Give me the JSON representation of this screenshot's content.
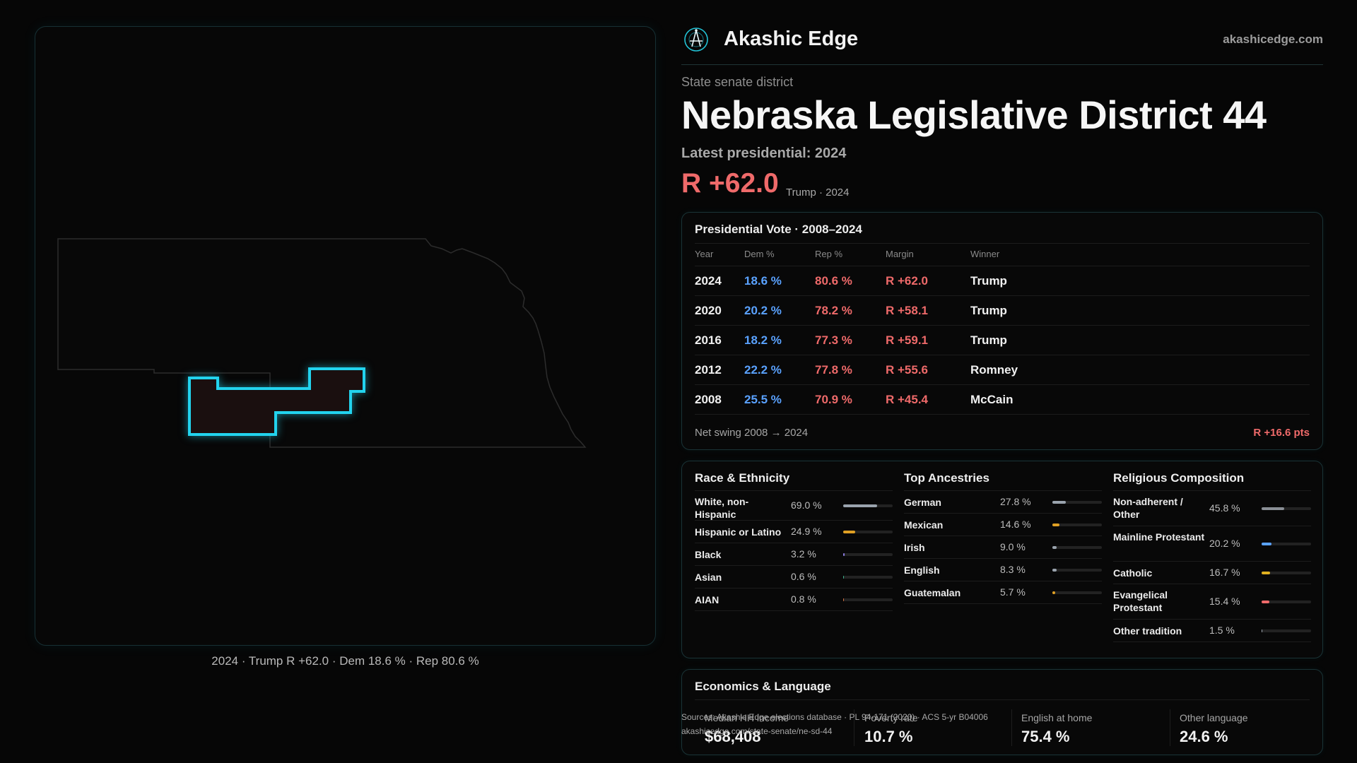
{
  "brand": {
    "name": "Akashic Edge",
    "url": "akashicedge.com",
    "logo": "akashic-compass-logo"
  },
  "header": {
    "kicker": "State senate district",
    "title": "Nebraska Legislative District 44",
    "latest": "Latest presidential: 2024",
    "margin": "R +62.0",
    "margin_sub": "Trump · 2024"
  },
  "map": {
    "caption": "2024 · Trump R +62.0 · Dem 18.6 % · Rep 80.6 %"
  },
  "presidential": {
    "title": "Presidential Vote · 2008–2024",
    "headers": [
      "Year",
      "Dem %",
      "Rep %",
      "Margin",
      "Winner"
    ],
    "rows": [
      {
        "year": "2024",
        "dem": "18.6 %",
        "rep": "80.6 %",
        "margin": "R +62.0",
        "winner": "Trump"
      },
      {
        "year": "2020",
        "dem": "20.2 %",
        "rep": "78.2 %",
        "margin": "R +58.1",
        "winner": "Trump"
      },
      {
        "year": "2016",
        "dem": "18.2 %",
        "rep": "77.3 %",
        "margin": "R +59.1",
        "winner": "Trump"
      },
      {
        "year": "2012",
        "dem": "22.2 %",
        "rep": "77.8 %",
        "margin": "R +55.6",
        "winner": "Romney"
      },
      {
        "year": "2008",
        "dem": "25.5 %",
        "rep": "70.9 %",
        "margin": "R +45.4",
        "winner": "McCain"
      }
    ],
    "swing_label": "Net swing 2008 → 2024",
    "swing_value": "R +16.6 pts"
  },
  "race": {
    "title": "Race & Ethnicity",
    "items": [
      {
        "label": "White, non-Hispanic",
        "value": "69.0 %",
        "pct": 69.0,
        "color": "#9aa3ad"
      },
      {
        "label": "Hispanic or Latino",
        "value": "24.9 %",
        "pct": 24.9,
        "color": "#e0a024"
      },
      {
        "label": "Black",
        "value": "3.2 %",
        "pct": 3.2,
        "color": "#8a7be0"
      },
      {
        "label": "Asian",
        "value": "0.6 %",
        "pct": 0.6,
        "color": "#3aaf8a"
      },
      {
        "label": "AIAN",
        "value": "0.8 %",
        "pct": 0.8,
        "color": "#d07040"
      }
    ]
  },
  "ancestries": {
    "title": "Top Ancestries",
    "items": [
      {
        "label": "German",
        "value": "27.8 %",
        "pct": 27.8,
        "color": "#9aa3ad"
      },
      {
        "label": "Mexican",
        "value": "14.6 %",
        "pct": 14.6,
        "color": "#e0a024"
      },
      {
        "label": "Irish",
        "value": "9.0 %",
        "pct": 9.0,
        "color": "#9aa3ad"
      },
      {
        "label": "English",
        "value": "8.3 %",
        "pct": 8.3,
        "color": "#9aa3ad"
      },
      {
        "label": "Guatemalan",
        "value": "5.7 %",
        "pct": 5.7,
        "color": "#e0a024"
      }
    ]
  },
  "religion": {
    "title": "Religious Composition",
    "items": [
      {
        "label": "Non-adherent / Other",
        "value": "45.8 %",
        "pct": 45.8,
        "color": "#8a8f96"
      },
      {
        "label": "Mainline Protestant",
        "value": "20.2 %",
        "pct": 20.2,
        "color": "#5aa2ff"
      },
      {
        "label": "Catholic",
        "value": "16.7 %",
        "pct": 16.7,
        "color": "#e0b020"
      },
      {
        "label": "Evangelical Protestant",
        "value": "15.4 %",
        "pct": 15.4,
        "color": "#ef6a6a"
      },
      {
        "label": "Other tradition",
        "value": "1.5 %",
        "pct": 1.5,
        "color": "#9aa3ad"
      }
    ]
  },
  "economics": {
    "title": "Economics & Language",
    "metrics": [
      {
        "label": "Median HH income",
        "value": "$68,408"
      },
      {
        "label": "Poverty rate",
        "value": "10.7 %"
      },
      {
        "label": "English at home",
        "value": "75.4 %"
      },
      {
        "label": "Other language",
        "value": "24.6 %"
      }
    ]
  },
  "source": {
    "line1": "Sources: Akashic Edge elections database · PL 94-171 (2020) · ACS 5-yr B04006",
    "line2": "akashicedge.com/state-senate/ne-sd-44"
  }
}
